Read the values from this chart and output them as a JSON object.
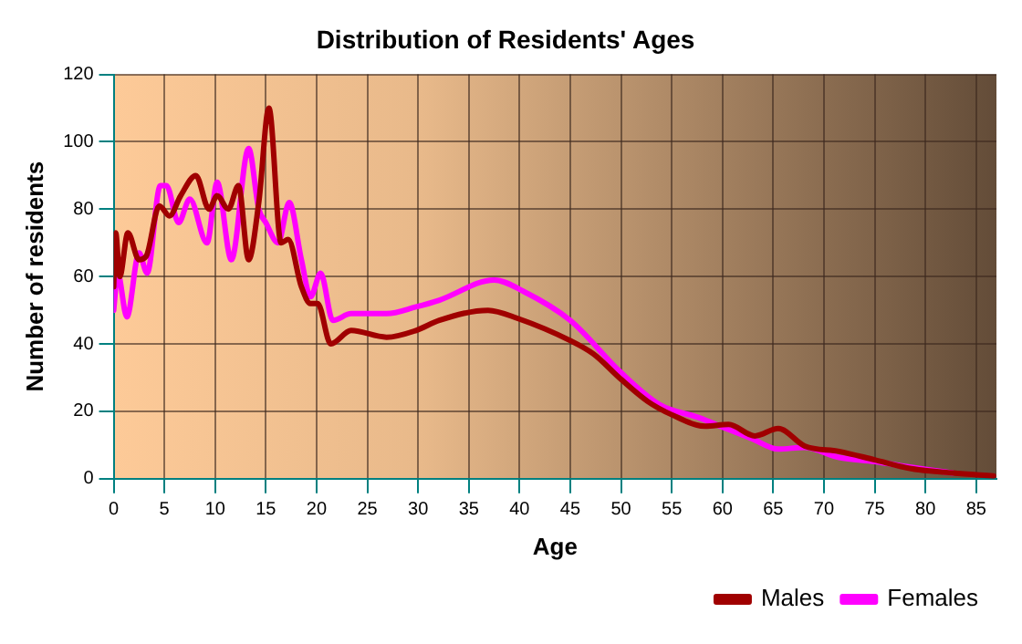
{
  "chart_data": {
    "type": "line",
    "title": "Distribution of Residents' Ages",
    "xlabel": "Age",
    "ylabel": "Number of residents",
    "xlim": [
      0,
      87
    ],
    "xticks": [
      0,
      5,
      10,
      15,
      20,
      25,
      30,
      35,
      40,
      45,
      50,
      55,
      60,
      65,
      70,
      75,
      80,
      85
    ],
    "ylim": [
      0,
      120
    ],
    "yticks": [
      0,
      20,
      40,
      60,
      80,
      100,
      120
    ],
    "grid": true,
    "legend": "bottom right",
    "marker": "none",
    "line_style": "solid",
    "series": [
      {
        "name": "Males",
        "color": "#a00000",
        "x": [
          0,
          0.2,
          0.6,
          1.4,
          2.5,
          3.2,
          4.5,
          5.5,
          6.6,
          8.1,
          9.4,
          10.2,
          11.3,
          12.3,
          13.3,
          14.3,
          15.3,
          16.5,
          17.2,
          18.5,
          19.4,
          20.1,
          21.4,
          23.4,
          26.9,
          29.8,
          32.1,
          36.9,
          39.8,
          45,
          47.3,
          50,
          52.6,
          55,
          58.3,
          60.6,
          63.2,
          65.5,
          68.1,
          71.5,
          75,
          78.6,
          82.7,
          86.7
        ],
        "values": [
          57,
          73,
          60,
          73,
          65,
          66,
          81,
          78,
          84,
          90,
          80,
          84,
          80,
          87,
          65,
          82,
          110,
          70,
          71,
          57,
          52,
          52,
          40,
          44,
          42,
          44,
          47,
          50,
          47.6,
          41,
          37,
          29.5,
          23,
          19,
          15.6,
          16.1,
          12.7,
          14.9,
          9.7,
          8.1,
          5.6,
          3,
          1.7,
          0.8
        ]
      },
      {
        "name": "Females",
        "color": "#ff00ff",
        "x": [
          0,
          0.4,
          1.3,
          2.5,
          3.3,
          4.6,
          5.2,
          6.4,
          7.5,
          9.2,
          10.2,
          11.6,
          13.3,
          14.3,
          15,
          16.2,
          17.3,
          18.5,
          19.4,
          20.4,
          21.6,
          23.4,
          26.9,
          29.8,
          32.1,
          37.5,
          40.4,
          45,
          50,
          53.8,
          57.8,
          60,
          62.9,
          65.5,
          68.1,
          71.5,
          75,
          78.6,
          82.7
        ],
        "values": [
          50,
          61,
          48,
          67,
          61,
          87,
          87,
          76,
          83,
          70,
          88,
          65,
          98,
          80,
          76,
          70,
          82,
          65,
          54,
          61,
          47,
          49,
          49,
          51,
          53,
          59,
          55.6,
          47,
          31.5,
          22,
          18,
          15.3,
          11.9,
          8.8,
          9.3,
          6.3,
          5.1,
          3.4,
          1.7
        ]
      }
    ]
  }
}
